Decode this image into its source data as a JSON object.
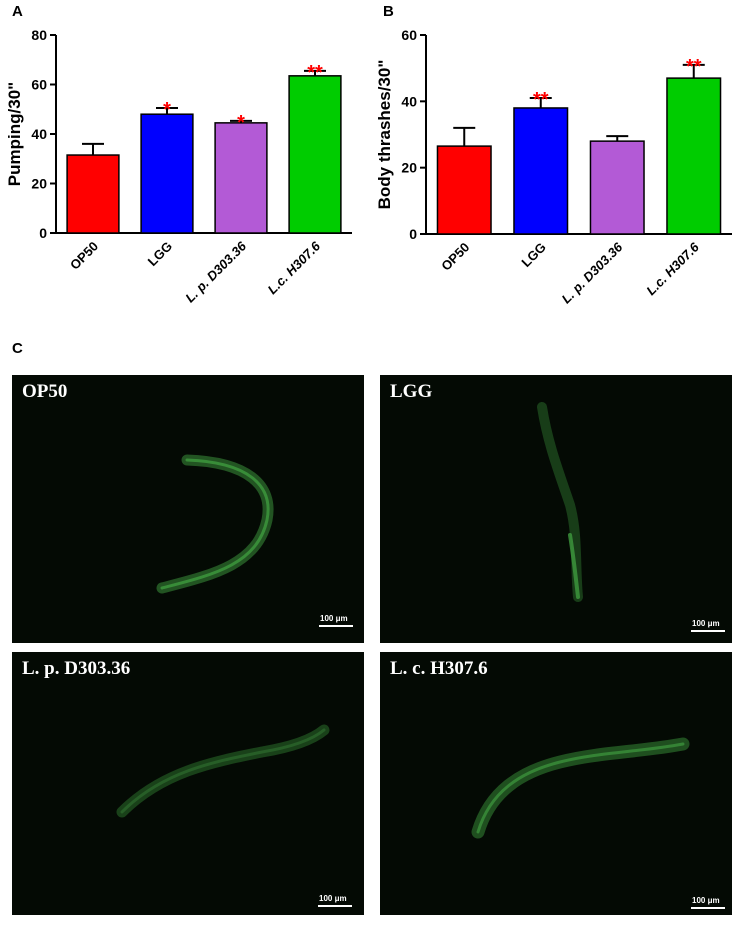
{
  "panels": {
    "a": "A",
    "b": "B",
    "c": "C"
  },
  "chart_data": [
    {
      "type": "bar",
      "panel": "A",
      "categories": [
        "OP50",
        "LGG",
        "L. p. D303.36",
        "L.c. H307.6"
      ],
      "values": [
        31.5,
        48,
        44.5,
        63.5
      ],
      "errors": [
        4.5,
        2.5,
        0.8,
        2
      ],
      "significance": [
        "",
        "*",
        "*",
        "**"
      ],
      "colors": [
        "#ff0000",
        "#0000ff",
        "#b35ad6",
        "#00cc00"
      ],
      "title": "",
      "xlabel": "",
      "ylabel": "Pumping/30\"",
      "ylim": [
        0,
        80
      ],
      "yticks": [
        0,
        20,
        40,
        60,
        80
      ],
      "grid": false
    },
    {
      "type": "bar",
      "panel": "B",
      "categories": [
        "OP50",
        "LGG",
        "L. p. D303.36",
        "L.c. H307.6"
      ],
      "values": [
        26.5,
        38,
        28,
        47
      ],
      "errors": [
        5.5,
        3,
        1.5,
        4
      ],
      "significance": [
        "",
        "**",
        "",
        "**"
      ],
      "colors": [
        "#ff0000",
        "#0000ff",
        "#b35ad6",
        "#00cc00"
      ],
      "title": "",
      "xlabel": "",
      "ylabel": "Body thrashes/30\"",
      "ylim": [
        0,
        60
      ],
      "yticks": [
        0,
        20,
        40,
        60
      ],
      "grid": false
    }
  ],
  "images": [
    {
      "label": "OP50",
      "scale": "100 μm"
    },
    {
      "label": "LGG",
      "scale": "100 μm"
    },
    {
      "label": "L. p. D303.36",
      "scale": "100 μm"
    },
    {
      "label": "L. c. H307.6",
      "scale": "100 μm"
    }
  ],
  "colors": {
    "significance": "#ff0000",
    "micro_background": "#040a04",
    "worm": "#2f7a2f"
  }
}
